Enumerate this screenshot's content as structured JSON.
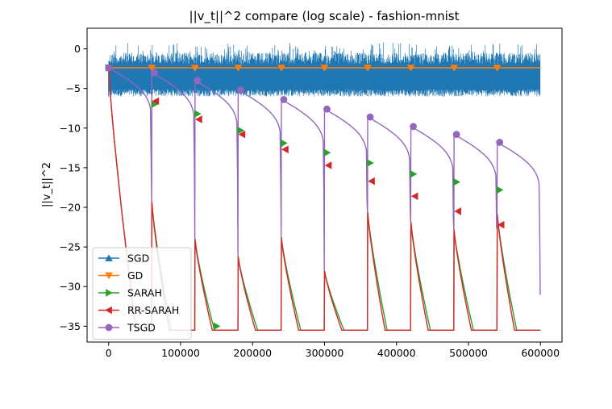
{
  "chart_data": {
    "type": "line",
    "title": "||v_t||^2 compare (log scale) - fashion-mnist",
    "xlabel": "",
    "ylabel": "||v_t||^2",
    "xlim": [
      -30000,
      630000
    ],
    "ylim": [
      -37.0,
      2.6
    ],
    "xticks": [
      0,
      100000,
      200000,
      300000,
      400000,
      500000,
      600000
    ],
    "xtick_labels": [
      "0",
      "100000",
      "200000",
      "300000",
      "400000",
      "500000",
      "600000"
    ],
    "yticks": [
      0,
      -5,
      -10,
      -15,
      -20,
      -25,
      -30,
      -35
    ],
    "ytick_labels": [
      "0",
      "−5",
      "−10",
      "−15",
      "−20",
      "−25",
      "−30",
      "−35"
    ],
    "grid": false,
    "legend_position": "lower-left",
    "x": [
      0,
      60000,
      120000,
      180000,
      240000,
      300000,
      360000,
      420000,
      480000,
      540000,
      600000
    ],
    "series": [
      {
        "name": "SGD",
        "color": "#1f77b4",
        "marker": "triangle-up",
        "band_min": -6.0,
        "band_max": 0.8,
        "band_mean": -2.5
      },
      {
        "name": "GD",
        "color": "#ff7f0e",
        "marker": "triangle-down",
        "values": [
          -2.4,
          -2.4,
          -2.4,
          -2.4,
          -2.4,
          -2.4,
          -2.4,
          -2.4,
          -2.4,
          -2.4,
          -2.4
        ]
      },
      {
        "name": "SARAH",
        "color": "#2ca02c",
        "marker": "triangle-right",
        "epoch_start_peaks": [
          -2.4,
          -19.3,
          -24.0,
          -26.2,
          -23.8,
          -28.0,
          -20.6,
          -21.8,
          -22.8,
          -20.8
        ],
        "marker_values": [
          -2.4,
          -7.0,
          -8.2,
          -10.3,
          -11.9,
          -13.1,
          -14.4,
          -15.8,
          -16.8,
          -17.8
        ],
        "floor": -35.5
      },
      {
        "name": "RR-SARAH",
        "color": "#d62728",
        "marker": "triangle-left",
        "epoch_start_peaks": [
          -2.4,
          -19.3,
          -24.0,
          -26.2,
          -23.8,
          -28.0,
          -20.6,
          -21.8,
          -22.8,
          -20.8
        ],
        "marker_values": [
          -2.4,
          -6.6,
          -8.9,
          -10.8,
          -12.7,
          -14.7,
          -16.7,
          -18.6,
          -20.5,
          -22.2
        ],
        "floor": -35.5
      },
      {
        "name": "TSGD",
        "color": "#9467bd",
        "marker": "circle",
        "marker_values": [
          -2.4,
          -3.0,
          -4.0,
          -5.2,
          -6.4,
          -7.6,
          -8.6,
          -9.8,
          -10.8,
          -11.8
        ],
        "epoch_end_values": [
          -19.3,
          -24.0,
          -26.2,
          -23.8,
          -28.0,
          -20.6,
          -21.8,
          -22.8,
          -20.8,
          -31.0
        ]
      }
    ]
  }
}
